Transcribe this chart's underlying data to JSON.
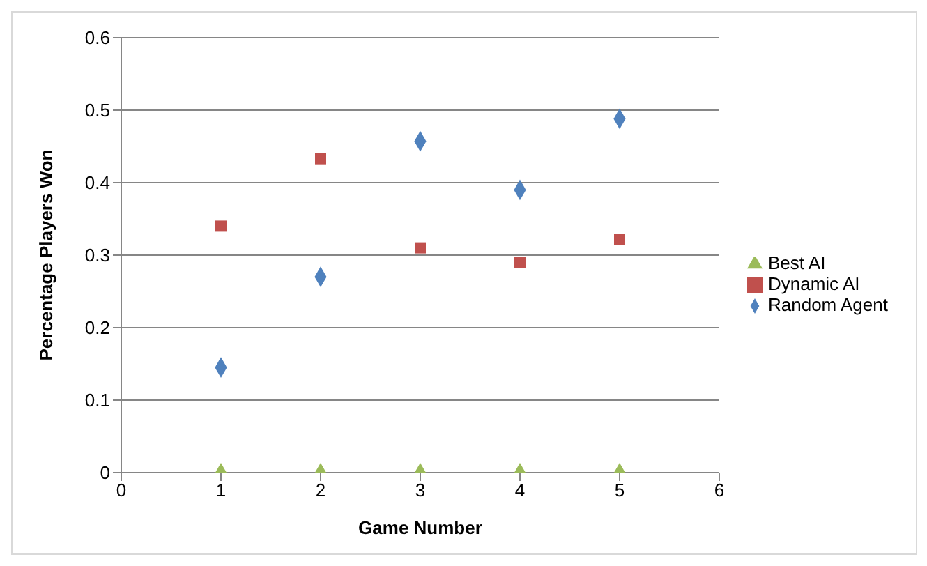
{
  "chart_data": {
    "type": "scatter",
    "xlabel": "Game Number",
    "ylabel": "Percentage Players Won",
    "x": [
      1,
      2,
      3,
      4,
      5
    ],
    "xlim": [
      0,
      6
    ],
    "xticks": [
      0,
      1,
      2,
      3,
      4,
      5,
      6
    ],
    "ylim": [
      0,
      0.6
    ],
    "yticks": [
      {
        "value": 0,
        "label": "0"
      },
      {
        "value": 0.1,
        "label": "0.1"
      },
      {
        "value": 0.2,
        "label": "0.2"
      },
      {
        "value": 0.3,
        "label": "0.3"
      },
      {
        "value": 0.4,
        "label": "0.4"
      },
      {
        "value": 0.5,
        "label": "0.5"
      },
      {
        "value": 0.6,
        "label": "0.6"
      }
    ],
    "grid": "y",
    "legend": "right",
    "series": [
      {
        "name": "Random Agent",
        "color": "#4f81bd",
        "marker": "diamond",
        "values": [
          0.145,
          0.27,
          0.457,
          0.39,
          0.488
        ]
      },
      {
        "name": "Dynamic AI",
        "color": "#c0504d",
        "marker": "square",
        "values": [
          0.34,
          0.433,
          0.31,
          0.29,
          0.322
        ]
      },
      {
        "name": "Best AI",
        "color": "#9bbb59",
        "marker": "triangle",
        "values": [
          0,
          0,
          0,
          0,
          0
        ]
      }
    ]
  }
}
